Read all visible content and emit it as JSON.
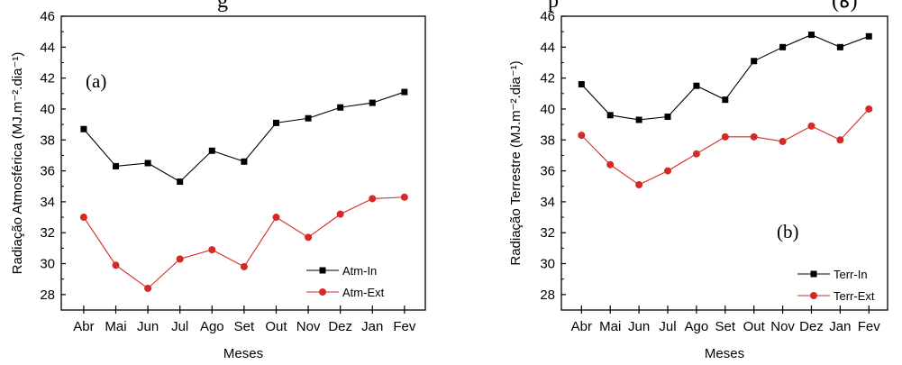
{
  "page": {
    "partial_title_left": "g",
    "partial_title_mid": "p",
    "partial_title_right": "(ه)"
  },
  "chart_data": [
    {
      "type": "line",
      "panel_label": "(a)",
      "xlabel": "Meses",
      "ylabel": "Radiação Atmosférica (MJ.m⁻².dia⁻¹)",
      "categories": [
        "Abr",
        "Mai",
        "Jun",
        "Jul",
        "Ago",
        "Set",
        "Out",
        "Nov",
        "Dez",
        "Jan",
        "Fev"
      ],
      "ylim": [
        27,
        46
      ],
      "yticks": [
        28,
        30,
        32,
        34,
        36,
        38,
        40,
        42,
        44,
        46
      ],
      "legend_position": "bottom-right",
      "series": [
        {
          "name": "Atm-In",
          "color": "#000000",
          "marker": "square",
          "values": [
            38.7,
            36.3,
            36.5,
            35.3,
            37.3,
            36.6,
            39.1,
            39.4,
            40.1,
            40.4,
            41.1
          ]
        },
        {
          "name": "Atm-Ext",
          "color": "#d42a26",
          "marker": "circle",
          "values": [
            33.0,
            29.9,
            28.4,
            30.3,
            30.9,
            29.8,
            33.0,
            31.7,
            33.2,
            34.2,
            34.3
          ]
        }
      ]
    },
    {
      "type": "line",
      "panel_label": "(b)",
      "xlabel": "Meses",
      "ylabel": "Radiação Terrestre (MJ.m⁻².dia⁻¹)",
      "categories": [
        "Abr",
        "Mai",
        "Jun",
        "Jul",
        "Ago",
        "Set",
        "Out",
        "Nov",
        "Dez",
        "Jan",
        "Fev"
      ],
      "ylim": [
        27,
        46
      ],
      "yticks": [
        28,
        30,
        32,
        34,
        36,
        38,
        40,
        42,
        44,
        46
      ],
      "legend_position": "bottom-right",
      "series": [
        {
          "name": "Terr-In",
          "color": "#000000",
          "marker": "square",
          "values": [
            41.6,
            39.6,
            39.3,
            39.5,
            41.5,
            40.6,
            43.1,
            44.0,
            44.8,
            44.0,
            44.7
          ]
        },
        {
          "name": "Terr-Ext",
          "color": "#d42a26",
          "marker": "circle",
          "values": [
            38.3,
            36.4,
            35.1,
            36.0,
            37.1,
            38.2,
            38.2,
            37.9,
            38.9,
            38.0,
            40.0
          ]
        }
      ]
    }
  ]
}
